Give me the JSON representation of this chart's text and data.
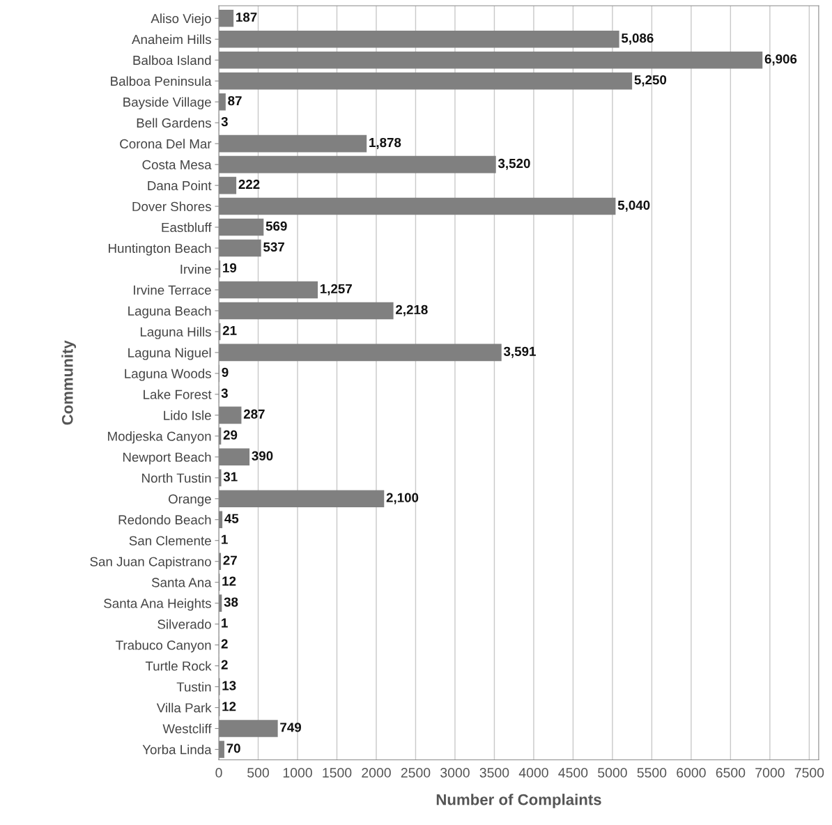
{
  "chart_data": {
    "type": "bar",
    "orientation": "horizontal",
    "xlabel": "Number of Complaints",
    "ylabel": "Community",
    "categories": [
      "Aliso Viejo",
      "Anaheim Hills",
      "Balboa Island",
      "Balboa Peninsula",
      "Bayside Village",
      "Bell Gardens",
      "Corona Del Mar",
      "Costa Mesa",
      "Dana Point",
      "Dover Shores",
      "Eastbluff",
      "Huntington Beach",
      "Irvine",
      "Irvine Terrace",
      "Laguna Beach",
      "Laguna Hills",
      "Laguna Niguel",
      "Laguna Woods",
      "Lake Forest",
      "Lido Isle",
      "Modjeska Canyon",
      "Newport Beach",
      "North Tustin",
      "Orange",
      "Redondo Beach",
      "San Clemente",
      "San Juan Capistrano",
      "Santa Ana",
      "Santa Ana Heights",
      "Silverado",
      "Trabuco Canyon",
      "Turtle Rock",
      "Tustin",
      "Villa Park",
      "Westcliff",
      "Yorba Linda"
    ],
    "values": [
      187,
      5086,
      6906,
      5250,
      87,
      3,
      1878,
      3520,
      222,
      5040,
      569,
      537,
      19,
      1257,
      2218,
      21,
      3591,
      9,
      3,
      287,
      29,
      390,
      31,
      2100,
      45,
      1,
      27,
      12,
      38,
      1,
      2,
      2,
      13,
      12,
      749,
      70
    ],
    "value_labels": [
      "187",
      "5,086",
      "6,906",
      "5,250",
      "87",
      "3",
      "1,878",
      "3,520",
      "222",
      "5,040",
      "569",
      "537",
      "19",
      "1,257",
      "2,218",
      "21",
      "3,591",
      "9",
      "3",
      "287",
      "29",
      "390",
      "31",
      "2,100",
      "45",
      "1",
      "27",
      "12",
      "38",
      "1",
      "2",
      "2",
      "13",
      "12",
      "749",
      "70"
    ],
    "color": "#808080",
    "grid": "x",
    "xlim": [
      0,
      7620
    ],
    "xticks": [
      0,
      500,
      1000,
      1500,
      2000,
      2500,
      3000,
      3500,
      4000,
      4500,
      5000,
      5500,
      6000,
      6500,
      7000,
      7500
    ]
  }
}
